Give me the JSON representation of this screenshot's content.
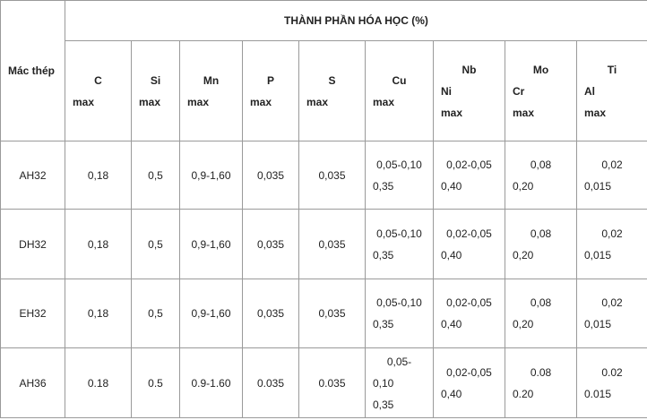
{
  "table": {
    "corner": "Mác thép",
    "group_header": "THÀNH PHẦN HÓA HỌC (%)",
    "columns": [
      [
        "C",
        "max"
      ],
      [
        "Si",
        "max"
      ],
      [
        "Mn",
        "max"
      ],
      [
        "P",
        "max"
      ],
      [
        "S",
        "max"
      ],
      [
        "Cu",
        "max"
      ],
      [
        "Nb",
        "Ni",
        "max"
      ],
      [
        "Mo",
        "Cr",
        "max"
      ],
      [
        "Ti",
        "Al",
        "max"
      ]
    ],
    "rows": [
      [
        [
          "AH32"
        ],
        [
          "0,18"
        ],
        [
          "0,5"
        ],
        [
          "0,9-1,60"
        ],
        [
          "0,035"
        ],
        [
          "0,035"
        ],
        [
          "0,05-0,10",
          "0,35"
        ],
        [
          "0,02-0,05",
          "0,40"
        ],
        [
          "0,08",
          "0,20"
        ],
        [
          "0,02",
          "0,015"
        ]
      ],
      [
        [
          "DH32"
        ],
        [
          "0,18"
        ],
        [
          "0,5"
        ],
        [
          "0,9-1,60"
        ],
        [
          "0,035"
        ],
        [
          "0,035"
        ],
        [
          "0,05-0,10",
          "0,35"
        ],
        [
          "0,02-0,05",
          "0,40"
        ],
        [
          "0,08",
          "0,20"
        ],
        [
          "0,02",
          "0,015"
        ]
      ],
      [
        [
          "EH32"
        ],
        [
          "0,18"
        ],
        [
          "0,5"
        ],
        [
          "0,9-1,60"
        ],
        [
          "0,035"
        ],
        [
          "0,035"
        ],
        [
          "0,05-0,10",
          "0,35"
        ],
        [
          "0,02-0,05",
          "0,40"
        ],
        [
          "0,08",
          "0,20"
        ],
        [
          "0,02",
          "0,015"
        ]
      ],
      [
        [
          "AH36"
        ],
        [
          "0.18"
        ],
        [
          "0.5"
        ],
        [
          "0.9-1.60"
        ],
        [
          "0.035"
        ],
        [
          "0.035"
        ],
        [
          "0,05-",
          "0,10",
          "0,35"
        ],
        [
          "0,02-0,05",
          "0,40"
        ],
        [
          "0.08",
          "0.20"
        ],
        [
          "0.02",
          "0.015"
        ]
      ]
    ]
  }
}
